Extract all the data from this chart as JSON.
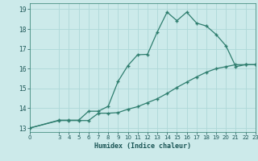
{
  "xlabel": "Humidex (Indice chaleur)",
  "bg_color": "#cceaea",
  "grid_color": "#aed8d8",
  "line_color": "#2e7d6e",
  "xlim": [
    0,
    23
  ],
  "ylim": [
    12.8,
    19.3
  ],
  "xticks": [
    0,
    3,
    4,
    5,
    6,
    7,
    8,
    9,
    10,
    11,
    12,
    13,
    14,
    15,
    16,
    17,
    18,
    19,
    20,
    21,
    22,
    23
  ],
  "yticks": [
    13,
    14,
    15,
    16,
    17,
    18,
    19
  ],
  "curve_x": [
    0,
    3,
    4,
    5,
    6,
    7,
    8,
    9,
    10,
    11,
    12,
    13,
    14,
    15,
    16,
    17,
    18,
    19,
    20,
    21,
    22,
    23
  ],
  "curve_y": [
    13.0,
    13.4,
    13.4,
    13.4,
    13.85,
    13.85,
    14.1,
    15.35,
    16.15,
    16.7,
    16.72,
    17.85,
    18.85,
    18.42,
    18.85,
    18.3,
    18.15,
    17.72,
    17.15,
    16.1,
    16.2,
    16.2
  ],
  "straight_x": [
    0,
    3,
    4,
    5,
    6,
    7,
    8,
    9,
    10,
    11,
    12,
    13,
    14,
    15,
    16,
    17,
    18,
    19,
    20,
    21,
    22,
    23
  ],
  "straight_y": [
    13.0,
    13.38,
    13.38,
    13.38,
    13.38,
    13.75,
    13.75,
    13.78,
    13.95,
    14.08,
    14.28,
    14.48,
    14.75,
    15.05,
    15.32,
    15.58,
    15.82,
    16.0,
    16.1,
    16.2,
    16.2,
    16.2
  ]
}
